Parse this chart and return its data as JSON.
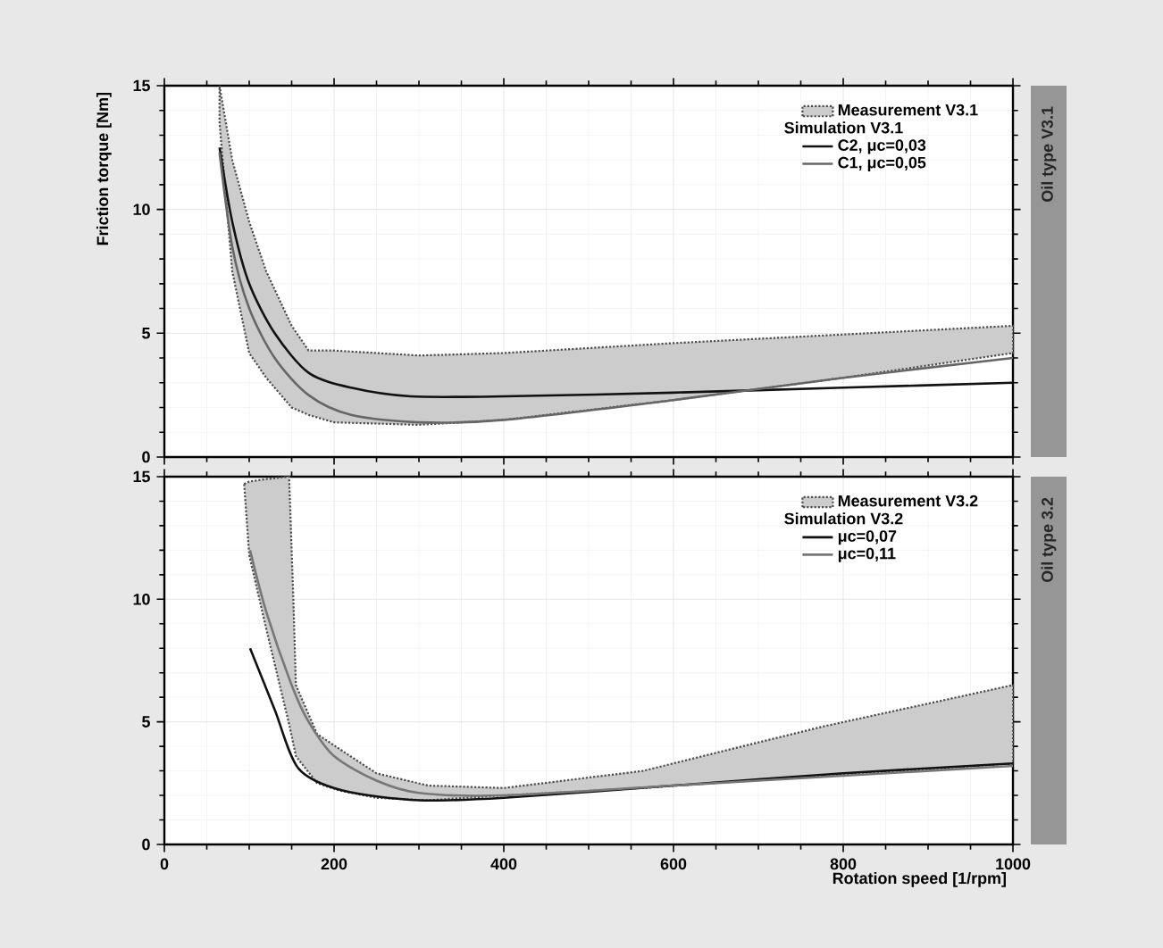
{
  "chart_data": [
    {
      "type": "line",
      "y2label": "Oil type V3.1",
      "ylabel": "Friction torque [Nm]",
      "xlim": [
        0,
        1000
      ],
      "ylim": [
        0,
        15
      ],
      "xticks": [
        0,
        200,
        400,
        600,
        800,
        1000
      ],
      "yticks": [
        0,
        5,
        10,
        15
      ],
      "tick_labels": "y",
      "grid": true,
      "legend": "top right",
      "marker": "none",
      "annotations": [
        "Simulation V3.1"
      ],
      "series": [
        {
          "name": "Measurement V3.1",
          "type": "area",
          "color": "#cccccc",
          "line_style": "dotted",
          "x": [
            65,
            80,
            100,
            120,
            150,
            170,
            200,
            300,
            400,
            600,
            800,
            1000
          ],
          "values": [
            null,
            null,
            null,
            null,
            null,
            null,
            null,
            null,
            null,
            null,
            null,
            null
          ],
          "upper": [
            15,
            12,
            9.5,
            7.5,
            5.3,
            4.3,
            4.3,
            4.1,
            4.2,
            4.6,
            4.95,
            5.3
          ],
          "lower": [
            13.5,
            7.5,
            4.2,
            3.2,
            2.0,
            1.7,
            1.4,
            1.3,
            1.5,
            2.3,
            3.2,
            4.2
          ]
        },
        {
          "name": "C2, μc=0,03",
          "color": "#111111",
          "line_style": "solid",
          "x": [
            65,
            80,
            100,
            130,
            170,
            220,
            290,
            400,
            600,
            800,
            1000
          ],
          "values": [
            12.5,
            9.5,
            7,
            5,
            3.4,
            2.8,
            2.45,
            2.45,
            2.6,
            2.8,
            3.0
          ]
        },
        {
          "name": "C1, μc=0,05",
          "color": "#666666",
          "line_style": "solid",
          "x": [
            65,
            80,
            100,
            130,
            170,
            220,
            300,
            400,
            600,
            800,
            1000
          ],
          "values": [
            12.3,
            8.5,
            6,
            4,
            2.5,
            1.7,
            1.4,
            1.5,
            2.3,
            3.2,
            4.0
          ]
        }
      ]
    },
    {
      "type": "line",
      "y2label": "Oil type 3.2",
      "xlabel": "Rotation speed [1/rpm]",
      "xlim": [
        0,
        1000
      ],
      "ylim": [
        0,
        15
      ],
      "xticks": [
        0,
        200,
        400,
        600,
        800,
        1000
      ],
      "yticks": [
        0,
        5,
        10,
        15
      ],
      "grid": true,
      "legend": "top right",
      "marker": "none",
      "annotations": [
        "Simulation V3.2"
      ],
      "series": [
        {
          "name": "Measurement V3.2",
          "type": "area",
          "color": "#cccccc",
          "line_style": "dotted",
          "x": [
            94,
            100,
            120,
            147,
            152,
            155,
            180,
            206,
            250,
            311,
            400,
            564,
            775,
            1000
          ],
          "values": [
            null,
            null,
            null,
            null,
            null,
            null,
            null,
            null,
            null,
            null,
            null,
            null,
            null,
            null
          ],
          "upper": [
            14.7,
            14.8,
            14.9,
            15,
            10,
            6.5,
            4.5,
            3.9,
            2.9,
            2.4,
            2.3,
            3.0,
            4.8,
            6.5
          ],
          "lower": [
            14.7,
            11.8,
            8.8,
            4.9,
            4.1,
            3.6,
            2.5,
            2.2,
            1.9,
            1.8,
            2.0,
            2.3,
            2.8,
            3.3
          ]
        },
        {
          "name": "μc=0,07",
          "color": "#111111",
          "line_style": "solid",
          "x": [
            101,
            130,
            158,
            210,
            300,
            400,
            600,
            800,
            1000
          ],
          "values": [
            8.0,
            5.5,
            3.1,
            2.2,
            1.8,
            1.9,
            2.4,
            2.9,
            3.3
          ]
        },
        {
          "name": "μc=0,11",
          "color": "#777777",
          "line_style": "solid",
          "x": [
            101,
            120,
            150,
            170,
            200,
            250,
            300,
            400,
            600,
            800,
            1000
          ],
          "values": [
            12,
            9.5,
            6.5,
            5,
            3.6,
            2.6,
            2.1,
            2.0,
            2.4,
            2.8,
            3.2
          ]
        }
      ]
    }
  ]
}
